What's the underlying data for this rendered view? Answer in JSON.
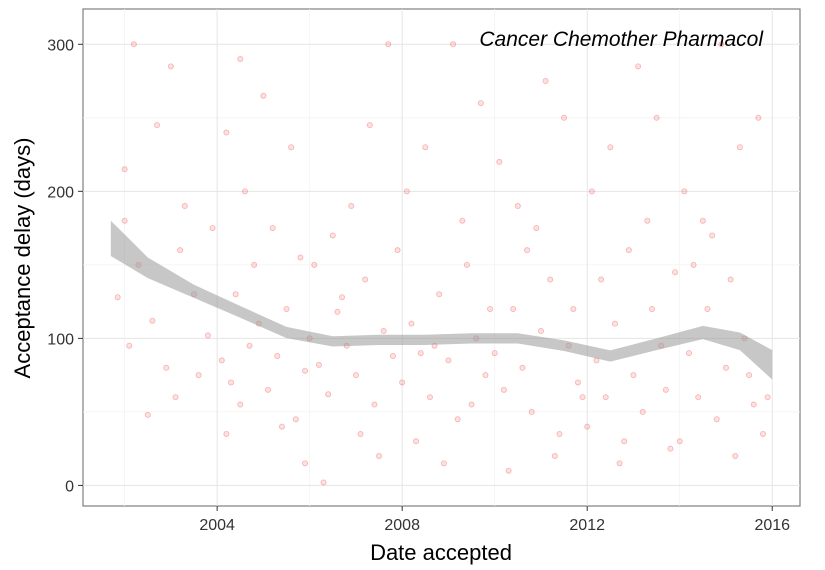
{
  "chart_data": {
    "type": "scatter",
    "annotation": "Cancer Chemother Pharmacol",
    "xlabel": "Date accepted",
    "ylabel": "Acceptance delay (days)",
    "xlim": [
      2001.1,
      2016.6
    ],
    "ylim": [
      -14,
      324
    ],
    "x_ticks": [
      {
        "value": 2004,
        "label": "2004"
      },
      {
        "value": 2008,
        "label": "2008"
      },
      {
        "value": 2012,
        "label": "2012"
      },
      {
        "value": 2016,
        "label": "2016"
      }
    ],
    "y_ticks": [
      {
        "value": 0,
        "label": "0"
      },
      {
        "value": 100,
        "label": "100"
      },
      {
        "value": 200,
        "label": "200"
      },
      {
        "value": 300,
        "label": "300"
      }
    ],
    "grid": true,
    "point_color": "#ee2222",
    "band_color": "#999999",
    "smooth": {
      "x": [
        2001.7,
        2002.5,
        2003.5,
        2004.5,
        2005.5,
        2006.5,
        2007.5,
        2008.5,
        2009.5,
        2010.5,
        2011.5,
        2012.5,
        2013.5,
        2014.5,
        2015.3,
        2016.0
      ],
      "y": [
        168,
        148,
        132,
        118,
        104,
        98,
        99,
        99,
        100,
        100,
        95,
        88,
        96,
        104,
        98,
        82
      ],
      "band": [
        12,
        7,
        4.5,
        4,
        3.8,
        3.5,
        3.5,
        3.5,
        3.5,
        3.5,
        3.6,
        3.8,
        4,
        4.5,
        6,
        10
      ]
    },
    "points": [
      [
        2001.85,
        128
      ],
      [
        2002.1,
        95
      ],
      [
        2002.3,
        150
      ],
      [
        2002.6,
        112
      ],
      [
        2002.9,
        80
      ],
      [
        2003.2,
        160
      ],
      [
        2003.5,
        130
      ],
      [
        2003.8,
        102
      ],
      [
        2002.0,
        215
      ],
      [
        2002.7,
        245
      ],
      [
        2003.3,
        190
      ],
      [
        2003.9,
        175
      ],
      [
        2002.2,
        300
      ],
      [
        2003.0,
        285
      ],
      [
        2004.2,
        240
      ],
      [
        2004.5,
        290
      ],
      [
        2002.5,
        48
      ],
      [
        2003.1,
        60
      ],
      [
        2003.6,
        75
      ],
      [
        2002.0,
        180
      ],
      [
        2004.1,
        85
      ],
      [
        2004.3,
        70
      ],
      [
        2004.5,
        55
      ],
      [
        2004.7,
        95
      ],
      [
        2004.9,
        110
      ],
      [
        2005.1,
        65
      ],
      [
        2005.3,
        88
      ],
      [
        2005.5,
        120
      ],
      [
        2005.7,
        45
      ],
      [
        2005.9,
        78
      ],
      [
        2004.8,
        150
      ],
      [
        2005.2,
        175
      ],
      [
        2005.8,
        155
      ],
      [
        2004.4,
        130
      ],
      [
        2005.4,
        40
      ],
      [
        2004.6,
        200
      ],
      [
        2005.0,
        265
      ],
      [
        2005.6,
        230
      ],
      [
        2005.9,
        15
      ],
      [
        2004.2,
        35
      ],
      [
        2006.0,
        100
      ],
      [
        2006.2,
        82
      ],
      [
        2006.4,
        62
      ],
      [
        2006.6,
        118
      ],
      [
        2006.8,
        95
      ],
      [
        2007.0,
        75
      ],
      [
        2007.2,
        140
      ],
      [
        2007.4,
        55
      ],
      [
        2007.6,
        105
      ],
      [
        2007.8,
        88
      ],
      [
        2006.3,
        2
      ],
      [
        2006.5,
        170
      ],
      [
        2006.9,
        190
      ],
      [
        2007.3,
        245
      ],
      [
        2007.7,
        300
      ],
      [
        2007.1,
        35
      ],
      [
        2006.7,
        128
      ],
      [
        2007.5,
        20
      ],
      [
        2006.1,
        150
      ],
      [
        2007.9,
        160
      ],
      [
        2008.0,
        70
      ],
      [
        2008.2,
        110
      ],
      [
        2008.4,
        90
      ],
      [
        2008.6,
        60
      ],
      [
        2008.8,
        130
      ],
      [
        2009.0,
        85
      ],
      [
        2009.2,
        45
      ],
      [
        2009.4,
        150
      ],
      [
        2009.6,
        100
      ],
      [
        2009.8,
        75
      ],
      [
        2008.1,
        200
      ],
      [
        2008.5,
        230
      ],
      [
        2009.1,
        300
      ],
      [
        2009.7,
        260
      ],
      [
        2008.3,
        30
      ],
      [
        2008.9,
        15
      ],
      [
        2009.3,
        180
      ],
      [
        2008.7,
        95
      ],
      [
        2009.5,
        55
      ],
      [
        2009.9,
        120
      ],
      [
        2010.0,
        90
      ],
      [
        2010.2,
        65
      ],
      [
        2010.4,
        120
      ],
      [
        2010.6,
        80
      ],
      [
        2010.8,
        50
      ],
      [
        2011.0,
        105
      ],
      [
        2011.2,
        140
      ],
      [
        2011.4,
        35
      ],
      [
        2011.6,
        95
      ],
      [
        2011.8,
        70
      ],
      [
        2010.1,
        220
      ],
      [
        2010.5,
        190
      ],
      [
        2011.1,
        275
      ],
      [
        2011.5,
        250
      ],
      [
        2010.3,
        10
      ],
      [
        2011.3,
        20
      ],
      [
        2010.7,
        160
      ],
      [
        2011.7,
        120
      ],
      [
        2010.9,
        175
      ],
      [
        2011.9,
        60
      ],
      [
        2012.0,
        40
      ],
      [
        2012.2,
        85
      ],
      [
        2012.4,
        60
      ],
      [
        2012.6,
        110
      ],
      [
        2012.8,
        30
      ],
      [
        2013.0,
        75
      ],
      [
        2013.2,
        50
      ],
      [
        2013.4,
        120
      ],
      [
        2013.6,
        95
      ],
      [
        2013.8,
        25
      ],
      [
        2012.1,
        200
      ],
      [
        2012.5,
        230
      ],
      [
        2013.1,
        285
      ],
      [
        2013.5,
        250
      ],
      [
        2012.3,
        140
      ],
      [
        2012.9,
        160
      ],
      [
        2013.3,
        180
      ],
      [
        2012.7,
        15
      ],
      [
        2013.7,
        65
      ],
      [
        2013.9,
        145
      ],
      [
        2014.0,
        30
      ],
      [
        2014.2,
        90
      ],
      [
        2014.4,
        60
      ],
      [
        2014.6,
        120
      ],
      [
        2014.8,
        45
      ],
      [
        2015.0,
        80
      ],
      [
        2015.2,
        20
      ],
      [
        2015.4,
        100
      ],
      [
        2015.6,
        55
      ],
      [
        2015.8,
        35
      ],
      [
        2014.1,
        200
      ],
      [
        2014.5,
        180
      ],
      [
        2014.9,
        300
      ],
      [
        2015.3,
        230
      ],
      [
        2014.3,
        150
      ],
      [
        2014.7,
        170
      ],
      [
        2015.1,
        140
      ],
      [
        2015.5,
        75
      ],
      [
        2015.7,
        250
      ],
      [
        2015.9,
        60
      ]
    ]
  }
}
